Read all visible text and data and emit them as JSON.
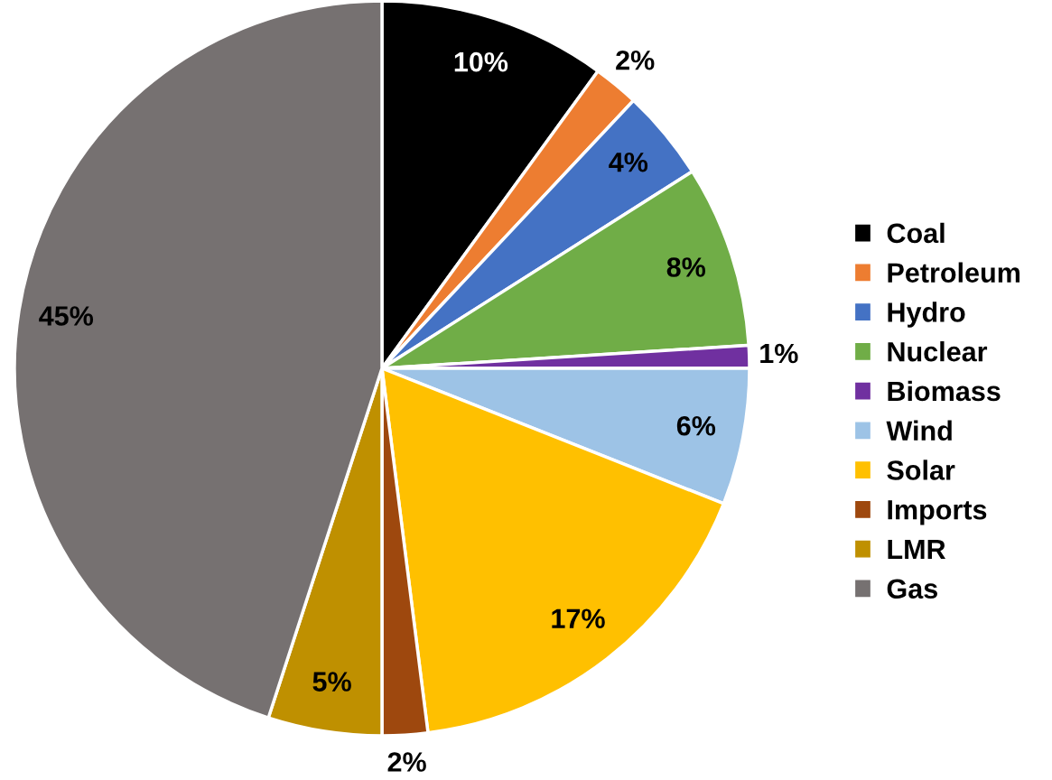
{
  "chart_data": {
    "type": "pie",
    "categories": [
      "Coal",
      "Petroleum",
      "Hydro",
      "Nuclear",
      "Biomass",
      "Wind",
      "Solar",
      "Imports",
      "LMR",
      "Gas"
    ],
    "values": [
      10,
      2,
      4,
      8,
      1,
      6,
      17,
      2,
      5,
      45
    ],
    "colors": [
      "#000000",
      "#ed7d31",
      "#4472c4",
      "#70ad47",
      "#7030a0",
      "#9dc3e6",
      "#ffc000",
      "#9e480e",
      "#bf9000",
      "#767171"
    ],
    "value_labels": [
      "10%",
      "2%",
      "4%",
      "8%",
      "1%",
      "6%",
      "17%",
      "2%",
      "5%",
      "45%"
    ],
    "legend": "right"
  }
}
